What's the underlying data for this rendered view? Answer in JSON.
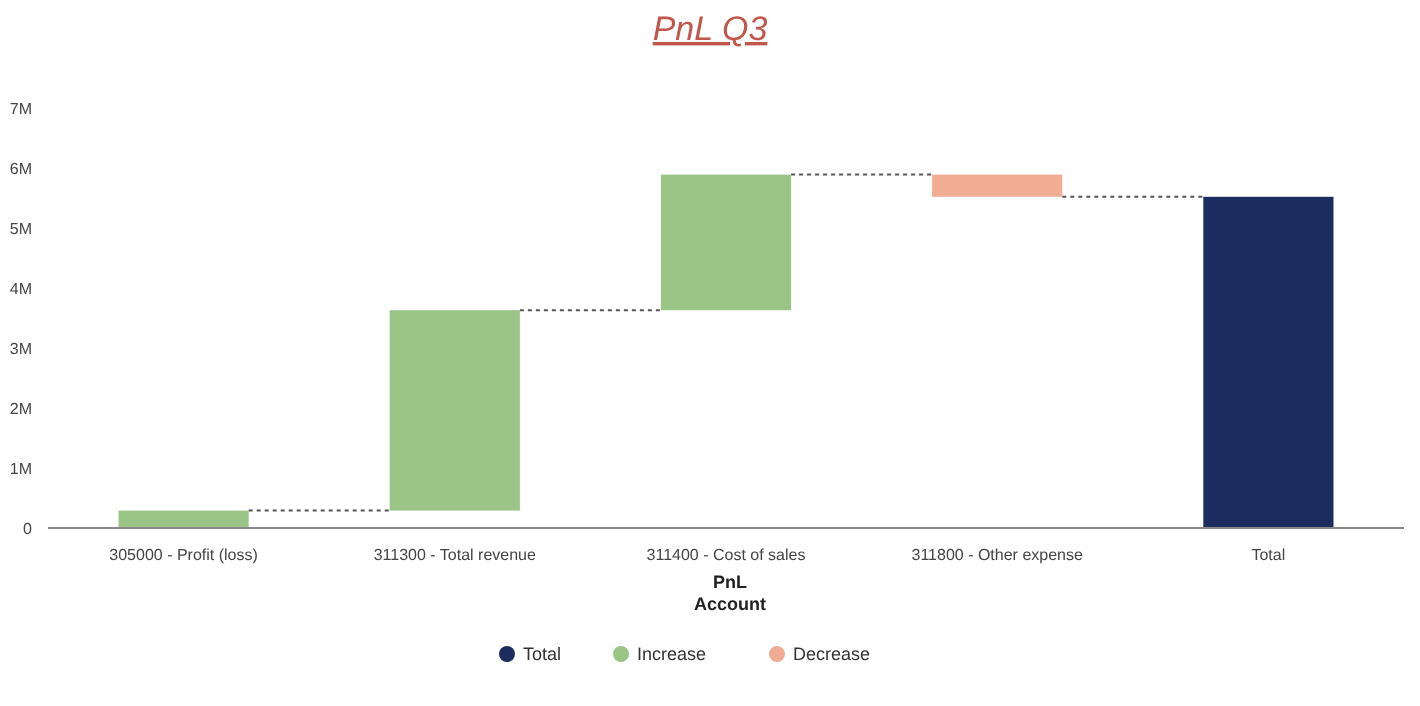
{
  "chart_data": {
    "type": "bar",
    "title": "PnL Q3",
    "xlabel": "PnL\nAccount",
    "categories": [
      "305000 - Profit (loss)",
      "311300 - Total revenue",
      "311400 - Cost of sales",
      "311800 - Other expense",
      "Total"
    ],
    "series": [
      {
        "name": "Total",
        "color": "#1c2c5e",
        "values": [
          null,
          null,
          null,
          null,
          5.52
        ],
        "base": [
          null,
          null,
          null,
          null,
          0
        ]
      },
      {
        "name": "Increase",
        "color": "#9bc587",
        "values": [
          0.29,
          3.34,
          2.26,
          null,
          null
        ],
        "base": [
          0,
          0.29,
          3.63,
          null,
          null
        ]
      },
      {
        "name": "Decrease",
        "color": "#f0ad94",
        "values": [
          null,
          null,
          null,
          -0.37,
          null
        ],
        "base": [
          null,
          null,
          null,
          5.89,
          null
        ]
      }
    ],
    "ylim": [
      0,
      7
    ],
    "yticks": [
      0,
      {
        "value": 1,
        "label": "1M"
      },
      {
        "value": 2,
        "label": "2M"
      },
      {
        "value": 3,
        "label": "3M"
      },
      {
        "value": 4,
        "label": "4M"
      },
      {
        "value": 5,
        "label": "5M"
      },
      {
        "value": 6,
        "label": "6M"
      },
      {
        "value": 7,
        "label": "7M"
      }
    ],
    "grid": false,
    "legend": "bottom"
  }
}
